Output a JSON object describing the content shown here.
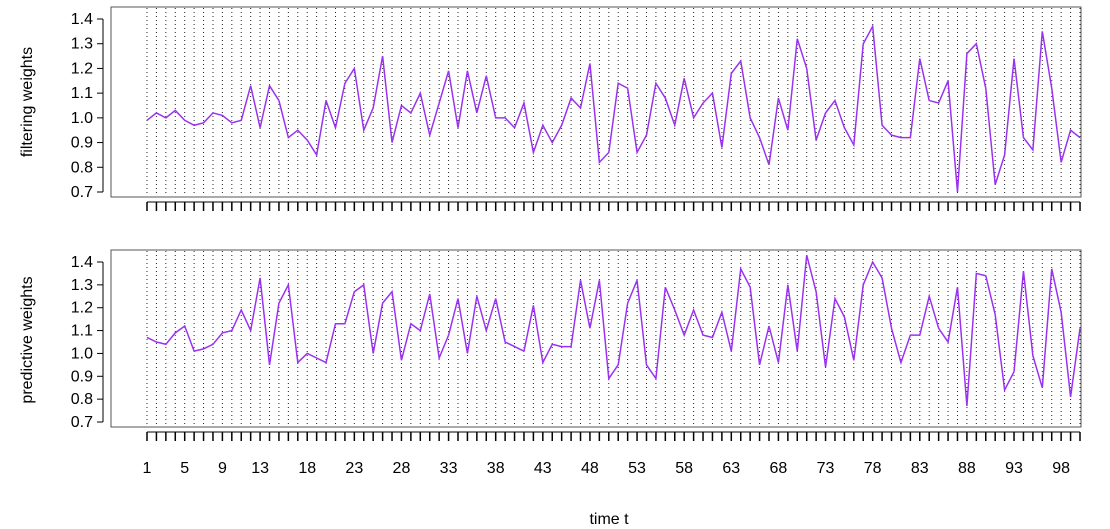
{
  "chart_data": [
    {
      "type": "line",
      "ylabel": "filtering weights",
      "ylim": [
        0.7,
        1.4
      ],
      "yticks": [
        "0.7",
        "0.8",
        "0.9",
        "1.0",
        "1.1",
        "1.2",
        "1.3",
        "1.4"
      ],
      "grid": true,
      "color": "#9a32f0",
      "x": [
        1,
        2,
        3,
        4,
        5,
        6,
        7,
        8,
        9,
        10,
        11,
        12,
        13,
        14,
        15,
        16,
        17,
        18,
        19,
        20,
        21,
        22,
        23,
        24,
        25,
        26,
        27,
        28,
        29,
        30,
        31,
        32,
        33,
        34,
        35,
        36,
        37,
        38,
        39,
        40,
        41,
        42,
        43,
        44,
        45,
        46,
        47,
        48,
        49,
        50,
        51,
        52,
        53,
        54,
        55,
        56,
        57,
        58,
        59,
        60,
        61,
        62,
        63,
        64,
        65,
        66,
        67,
        68,
        69,
        70,
        71,
        72,
        73,
        74,
        75,
        76,
        77,
        78,
        79,
        80,
        81,
        82,
        83,
        84,
        85,
        86,
        87,
        88,
        89,
        90,
        91,
        92,
        93,
        94,
        95,
        96,
        97,
        98,
        99,
        100
      ],
      "values": [
        0.99,
        1.02,
        1.0,
        1.03,
        0.99,
        0.97,
        0.98,
        1.02,
        1.01,
        0.98,
        0.99,
        1.13,
        0.96,
        1.13,
        1.07,
        0.92,
        0.95,
        0.91,
        0.85,
        1.07,
        0.96,
        1.14,
        1.2,
        0.95,
        1.04,
        1.25,
        0.9,
        1.05,
        1.02,
        1.1,
        0.93,
        1.06,
        1.19,
        0.96,
        1.19,
        1.02,
        1.17,
        1.0,
        1.0,
        0.96,
        1.06,
        0.86,
        0.97,
        0.9,
        0.97,
        1.08,
        1.04,
        1.22,
        0.82,
        0.86,
        1.14,
        1.12,
        0.86,
        0.93,
        1.14,
        1.08,
        0.97,
        1.16,
        1.0,
        1.06,
        1.1,
        0.88,
        1.18,
        1.23,
        1.0,
        0.92,
        0.81,
        1.08,
        0.95,
        1.32,
        1.2,
        0.91,
        1.02,
        1.07,
        0.96,
        0.89,
        1.3,
        1.37,
        0.97,
        0.93,
        0.92,
        0.92,
        1.24,
        1.07,
        1.06,
        1.15,
        0.7,
        1.26,
        1.3,
        1.12,
        0.73,
        0.85,
        1.24,
        0.92,
        0.87,
        1.35,
        1.12,
        0.82,
        0.95,
        0.92
      ]
    },
    {
      "type": "line",
      "xlabel": "time t",
      "ylabel": "predictive weights",
      "ylim": [
        0.7,
        1.4
      ],
      "yticks": [
        "0.7",
        "0.8",
        "0.9",
        "1.0",
        "1.1",
        "1.2",
        "1.3",
        "1.4"
      ],
      "xticks": [
        "1",
        "5",
        "9",
        "13",
        "18",
        "23",
        "28",
        "33",
        "38",
        "43",
        "48",
        "53",
        "58",
        "63",
        "68",
        "73",
        "78",
        "83",
        "88",
        "93",
        "98"
      ],
      "grid": true,
      "color": "#9a32f0",
      "x": [
        1,
        2,
        3,
        4,
        5,
        6,
        7,
        8,
        9,
        10,
        11,
        12,
        13,
        14,
        15,
        16,
        17,
        18,
        19,
        20,
        21,
        22,
        23,
        24,
        25,
        26,
        27,
        28,
        29,
        30,
        31,
        32,
        33,
        34,
        35,
        36,
        37,
        38,
        39,
        40,
        41,
        42,
        43,
        44,
        45,
        46,
        47,
        48,
        49,
        50,
        51,
        52,
        53,
        54,
        55,
        56,
        57,
        58,
        59,
        60,
        61,
        62,
        63,
        64,
        65,
        66,
        67,
        68,
        69,
        70,
        71,
        72,
        73,
        74,
        75,
        76,
        77,
        78,
        79,
        80,
        81,
        82,
        83,
        84,
        85,
        86,
        87,
        88,
        89,
        90,
        91,
        92,
        93,
        94,
        95,
        96,
        97,
        98,
        99,
        100
      ],
      "values": [
        1.07,
        1.05,
        1.04,
        1.09,
        1.12,
        1.01,
        1.02,
        1.04,
        1.09,
        1.1,
        1.19,
        1.1,
        1.33,
        0.95,
        1.22,
        1.3,
        0.96,
        1.0,
        0.98,
        0.96,
        1.13,
        1.13,
        1.27,
        1.3,
        1.0,
        1.22,
        1.27,
        0.97,
        1.13,
        1.1,
        1.26,
        0.98,
        1.08,
        1.24,
        1.0,
        1.25,
        1.1,
        1.24,
        1.05,
        1.03,
        1.01,
        1.21,
        0.96,
        1.04,
        1.03,
        1.03,
        1.32,
        1.11,
        1.32,
        0.89,
        0.95,
        1.22,
        1.32,
        0.95,
        0.89,
        1.29,
        1.19,
        1.08,
        1.19,
        1.08,
        1.07,
        1.18,
        1.01,
        1.37,
        1.29,
        0.95,
        1.12,
        0.96,
        1.3,
        1.01,
        1.43,
        1.27,
        0.94,
        1.24,
        1.16,
        0.97,
        1.3,
        1.4,
        1.33,
        1.11,
        0.96,
        1.08,
        1.08,
        1.25,
        1.11,
        1.05,
        1.29,
        0.77,
        1.35,
        1.34,
        1.17,
        0.84,
        0.92,
        1.36,
        0.99,
        0.85,
        1.37,
        1.18,
        0.81,
        1.11
      ]
    }
  ]
}
